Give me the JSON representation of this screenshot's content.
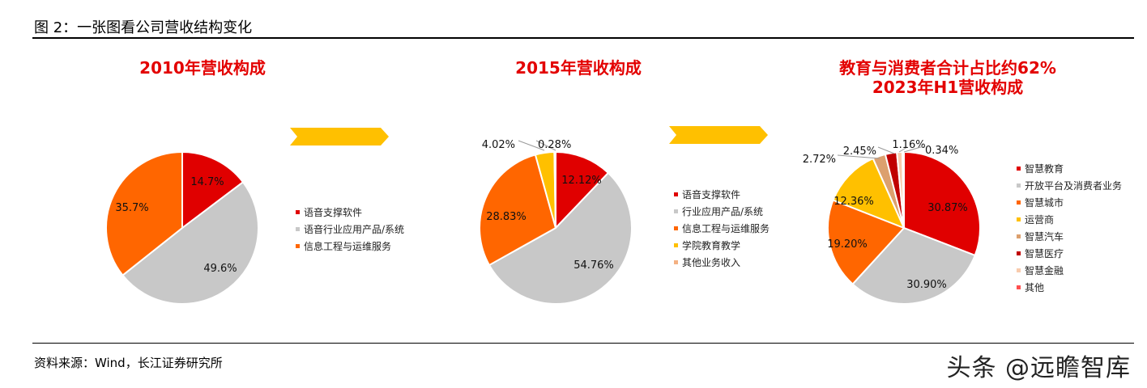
{
  "figure": {
    "title": "图 2：一张图看公司营收结构变化",
    "source": "资料来源：Wind，长江证券研究所",
    "watermark": "头条 @远瞻智库"
  },
  "colors": {
    "title_red": "#e30000",
    "arrow_yellow": "#ffc000"
  },
  "chart_data": [
    {
      "type": "pie",
      "title": "2010年营收构成",
      "labels": [
        "语音支撑软件",
        "语音行业应用产品/系统",
        "信息工程与运维服务"
      ],
      "values": [
        14.7,
        49.6,
        35.7
      ],
      "value_labels": [
        "14.7%",
        "49.6%",
        "35.7%"
      ],
      "colors": [
        "#e00000",
        "#c8c8c8",
        "#ff6600"
      ],
      "legend_position": "right"
    },
    {
      "type": "pie",
      "title": "2015年营收构成",
      "labels": [
        "语音支撑软件",
        "行业应用产品/系统",
        "信息工程与运维服务",
        "学院教育教学",
        "其他业务收入"
      ],
      "values": [
        12.12,
        54.76,
        28.83,
        4.02,
        0.28
      ],
      "value_labels": [
        "12.12%",
        "54.76%",
        "28.83%",
        "4.02%",
        "0.28%"
      ],
      "colors": [
        "#e00000",
        "#c8c8c8",
        "#ff6600",
        "#ffc000",
        "#f4b183"
      ],
      "legend_position": "right"
    },
    {
      "type": "pie",
      "title": "教育与消费者合计占比约62%",
      "subtitle": "2023年H1营收构成",
      "labels": [
        "智慧教育",
        "开放平台及消费者业务",
        "智慧城市",
        "运营商",
        "智慧汽车",
        "智慧医疗",
        "智慧金融",
        "其他"
      ],
      "values": [
        30.87,
        30.9,
        19.2,
        12.36,
        2.72,
        2.45,
        1.16,
        0.34
      ],
      "value_labels": [
        "30.87%",
        "30.90%",
        "19.20%",
        "12.36%",
        "2.72%",
        "2.45%",
        "1.16%",
        "0.34%"
      ],
      "colors": [
        "#e00000",
        "#c8c8c8",
        "#ff6600",
        "#ffc000",
        "#dca06e",
        "#c00000",
        "#f8cbad",
        "#ff5050"
      ],
      "legend_position": "right"
    }
  ]
}
